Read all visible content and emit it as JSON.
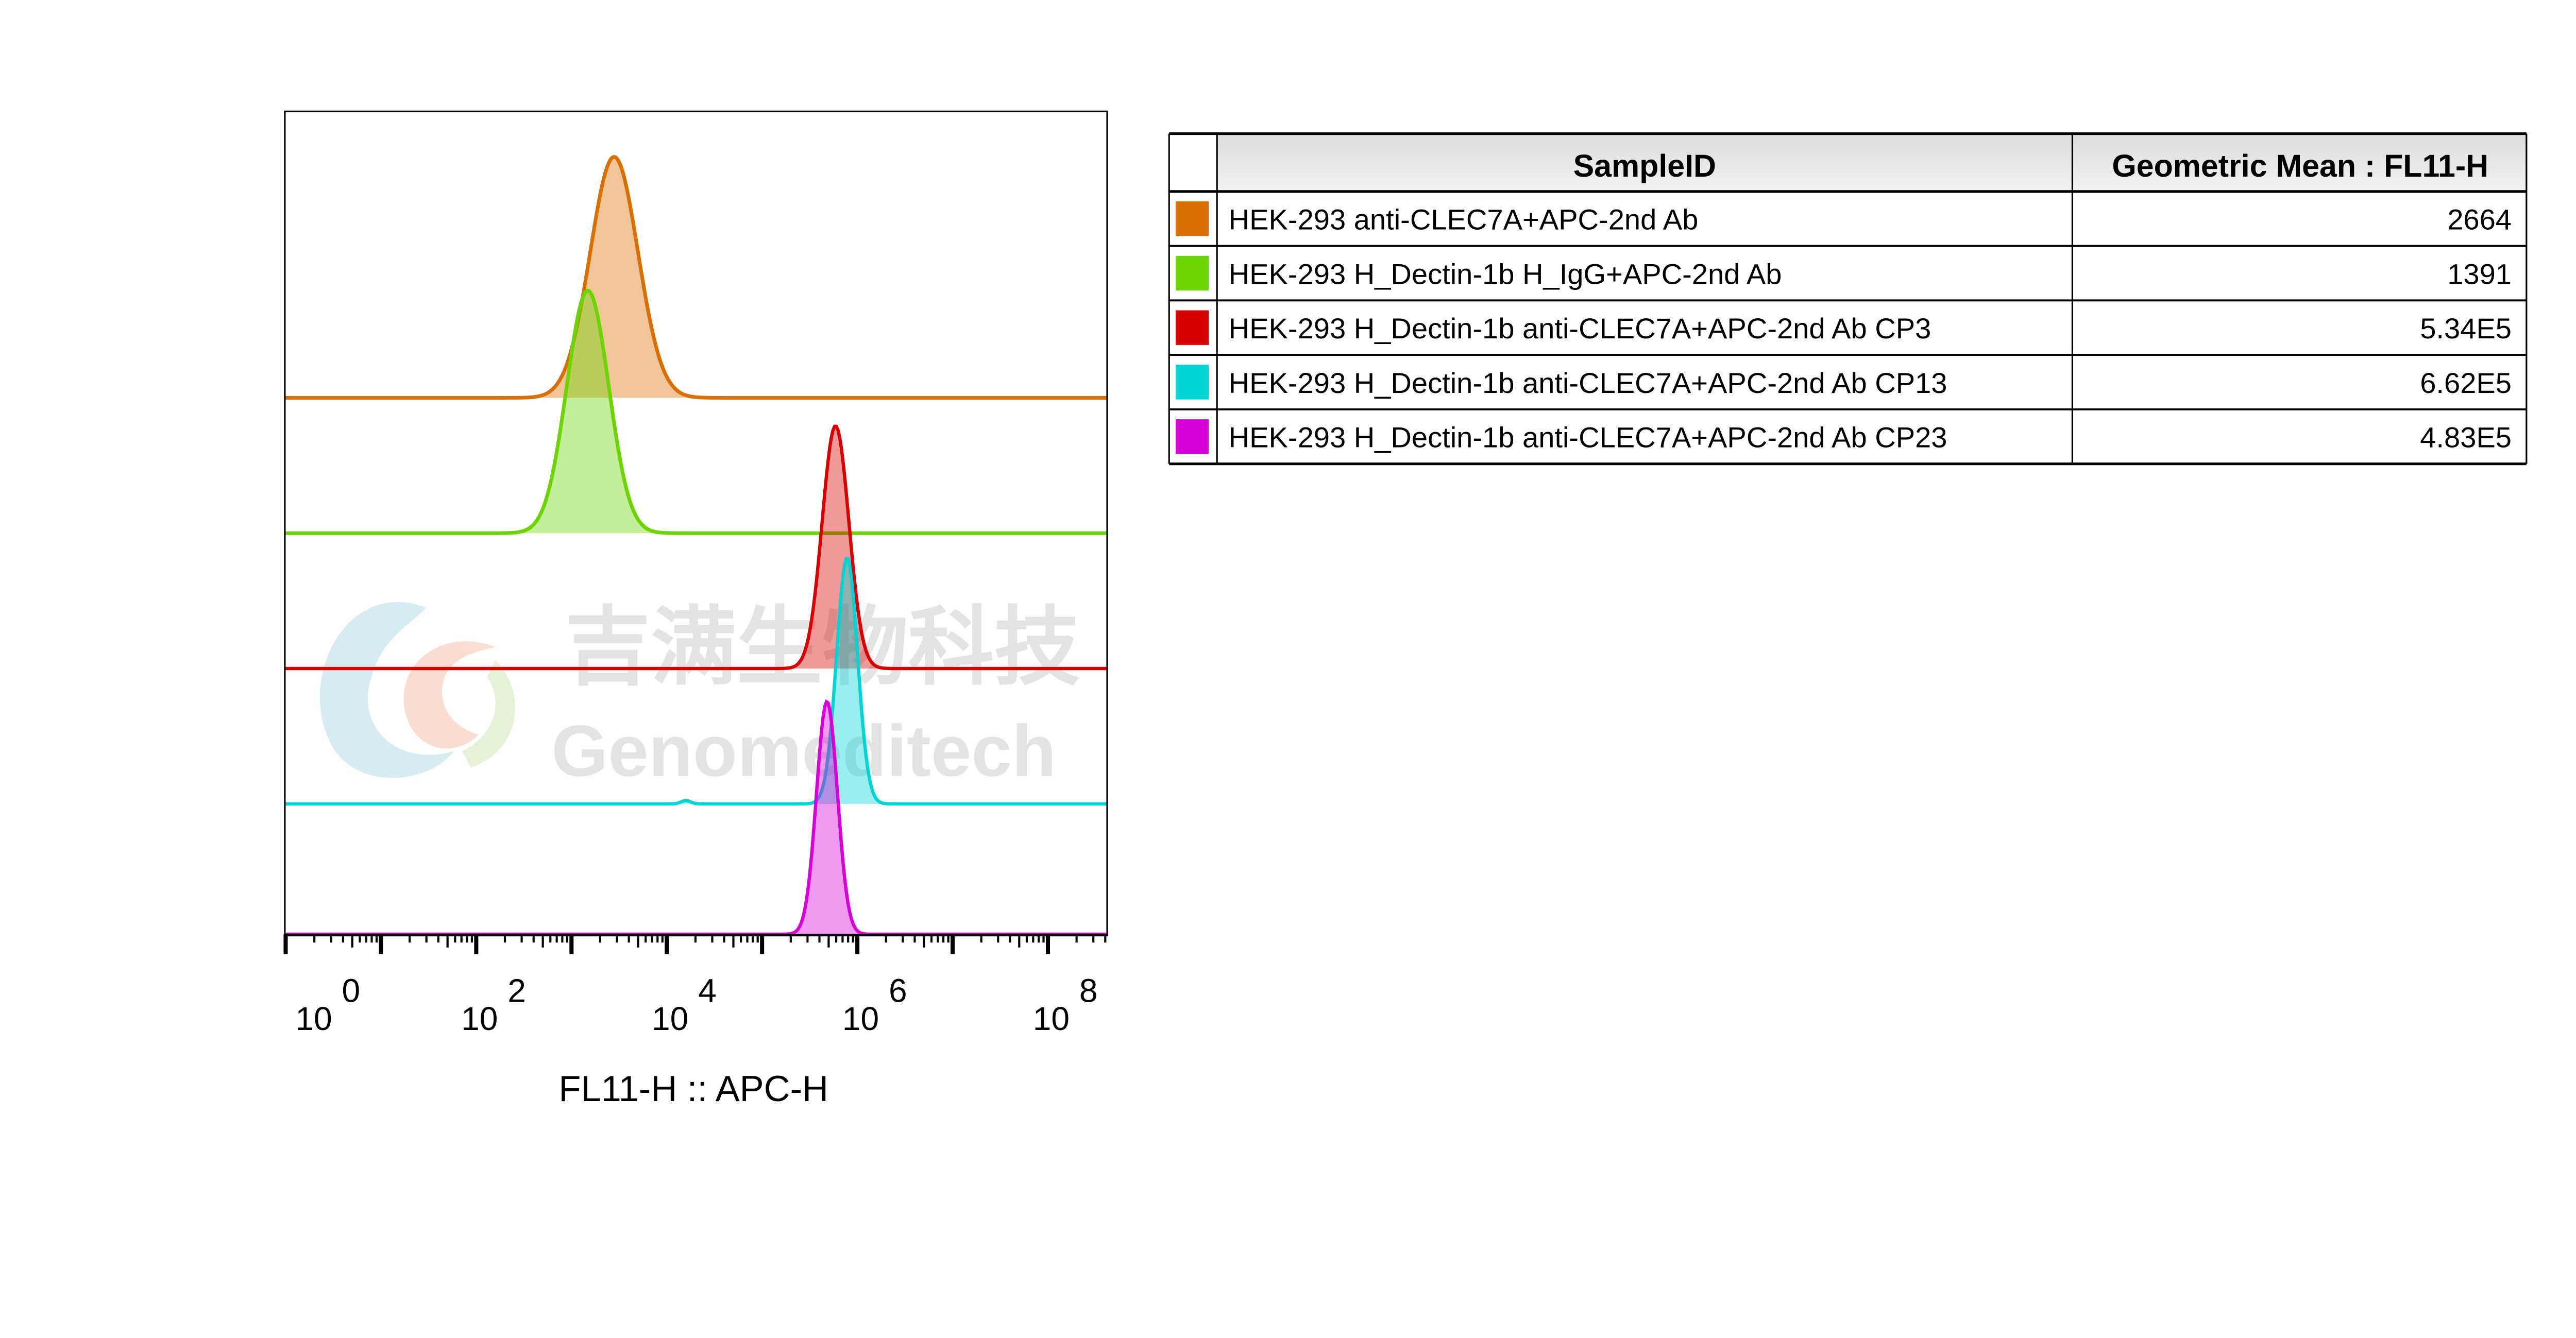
{
  "chart_data": {
    "type": "histogram-overlay (offset, modal)",
    "xlabel": "FL11-H :: APC-H",
    "xscale": "log",
    "xlim": [
      1,
      400000000
    ],
    "x_tick_labels": [
      {
        "base": "10",
        "exp": "0",
        "value": 1
      },
      {
        "base": "10",
        "exp": "2",
        "value": 100
      },
      {
        "base": "10",
        "exp": "4",
        "value": 10000
      },
      {
        "base": "10",
        "exp": "6",
        "value": 1000000
      },
      {
        "base": "10",
        "exp": "8",
        "value": 100000000
      }
    ],
    "series": [
      {
        "name": "HEK-293 anti-CLEC7A+APC-2nd Ab",
        "color": "#d96f00",
        "peak": 2800,
        "spread_decades": 0.25,
        "geo_mean": "2664"
      },
      {
        "name": "HEK-293 H_Dectin-1b H_IgG+APC-2nd Ab",
        "color": "#6cd400",
        "peak": 1480,
        "spread_decades": 0.22,
        "geo_mean": "1391"
      },
      {
        "name": "HEK-293 H_Dectin-1b anti-CLEC7A+APC-2nd Ab CP3",
        "color": "#d80000",
        "peak": 590000,
        "spread_decades": 0.14,
        "geo_mean": "5.34E5"
      },
      {
        "name": "HEK-293 H_Dectin-1b anti-CLEC7A+APC-2nd Ab CP13",
        "color": "#00d4d4",
        "peak": 780000,
        "spread_decades": 0.11,
        "geo_mean": "6.62E5"
      },
      {
        "name": "HEK-293 H_Dectin-1b anti-CLEC7A+APC-2nd Ab CP23",
        "color": "#d800d8",
        "peak": 480000,
        "spread_decades": 0.11,
        "geo_mean": "4.83E5"
      }
    ]
  },
  "table": {
    "headers": [
      "SampleID",
      "Geometric Mean : FL11-H"
    ],
    "rows": [
      {
        "sample": "HEK-293 anti-CLEC7A+APC-2nd Ab",
        "value": "2664",
        "color": "#d96f00"
      },
      {
        "sample": "HEK-293 H_Dectin-1b H_IgG+APC-2nd Ab",
        "value": "1391",
        "color": "#6cd400"
      },
      {
        "sample": "HEK-293 H_Dectin-1b anti-CLEC7A+APC-2nd Ab CP3",
        "value": "5.34E5",
        "color": "#d80000"
      },
      {
        "sample": "HEK-293 H_Dectin-1b anti-CLEC7A+APC-2nd Ab CP13",
        "value": "6.62E5",
        "color": "#00d4d4"
      },
      {
        "sample": "HEK-293 H_Dectin-1b anti-CLEC7A+APC-2nd Ab CP23",
        "value": "4.83E5",
        "color": "#d800d8"
      }
    ]
  },
  "watermark": {
    "cn": "吉满生物科技",
    "en": "Genomeditech"
  }
}
